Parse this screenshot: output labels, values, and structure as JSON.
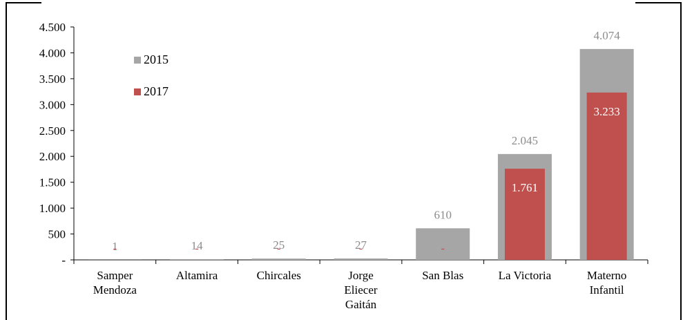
{
  "chart_data": {
    "type": "bar",
    "title": "",
    "xlabel": "",
    "ylabel": "",
    "ylim": [
      0,
      4500
    ],
    "yticks": [
      "4.500",
      "4.000",
      "3.500",
      "3.000",
      "2.500",
      "2.000",
      "1.500",
      "1.000",
      "500",
      "-"
    ],
    "ytick_values": [
      4500,
      4000,
      3500,
      3000,
      2500,
      2000,
      1500,
      1000,
      500,
      0
    ],
    "categories": [
      [
        "Samper",
        "Mendoza"
      ],
      [
        "Altamira"
      ],
      [
        "Chircales"
      ],
      [
        "Jorge",
        "Eliecer",
        "Gaitán"
      ],
      [
        "San Blas"
      ],
      [
        "La Victoria"
      ],
      [
        "Materno",
        "Infantil"
      ]
    ],
    "series": [
      {
        "name": "2015",
        "color": "#a6a6a6",
        "values": [
          1,
          14,
          25,
          27,
          610,
          2045,
          4074
        ],
        "labels": [
          "1",
          "14",
          "25",
          "27",
          "610",
          "2.045",
          "4.074"
        ]
      },
      {
        "name": "2017",
        "color": "#c0504d",
        "values": [
          0,
          0,
          0,
          0,
          0,
          1761,
          3233
        ],
        "labels": [
          "-",
          "-",
          "-",
          "-",
          "-",
          "1.761",
          "3.233"
        ]
      }
    ],
    "legend": "top-left",
    "grid": false
  }
}
